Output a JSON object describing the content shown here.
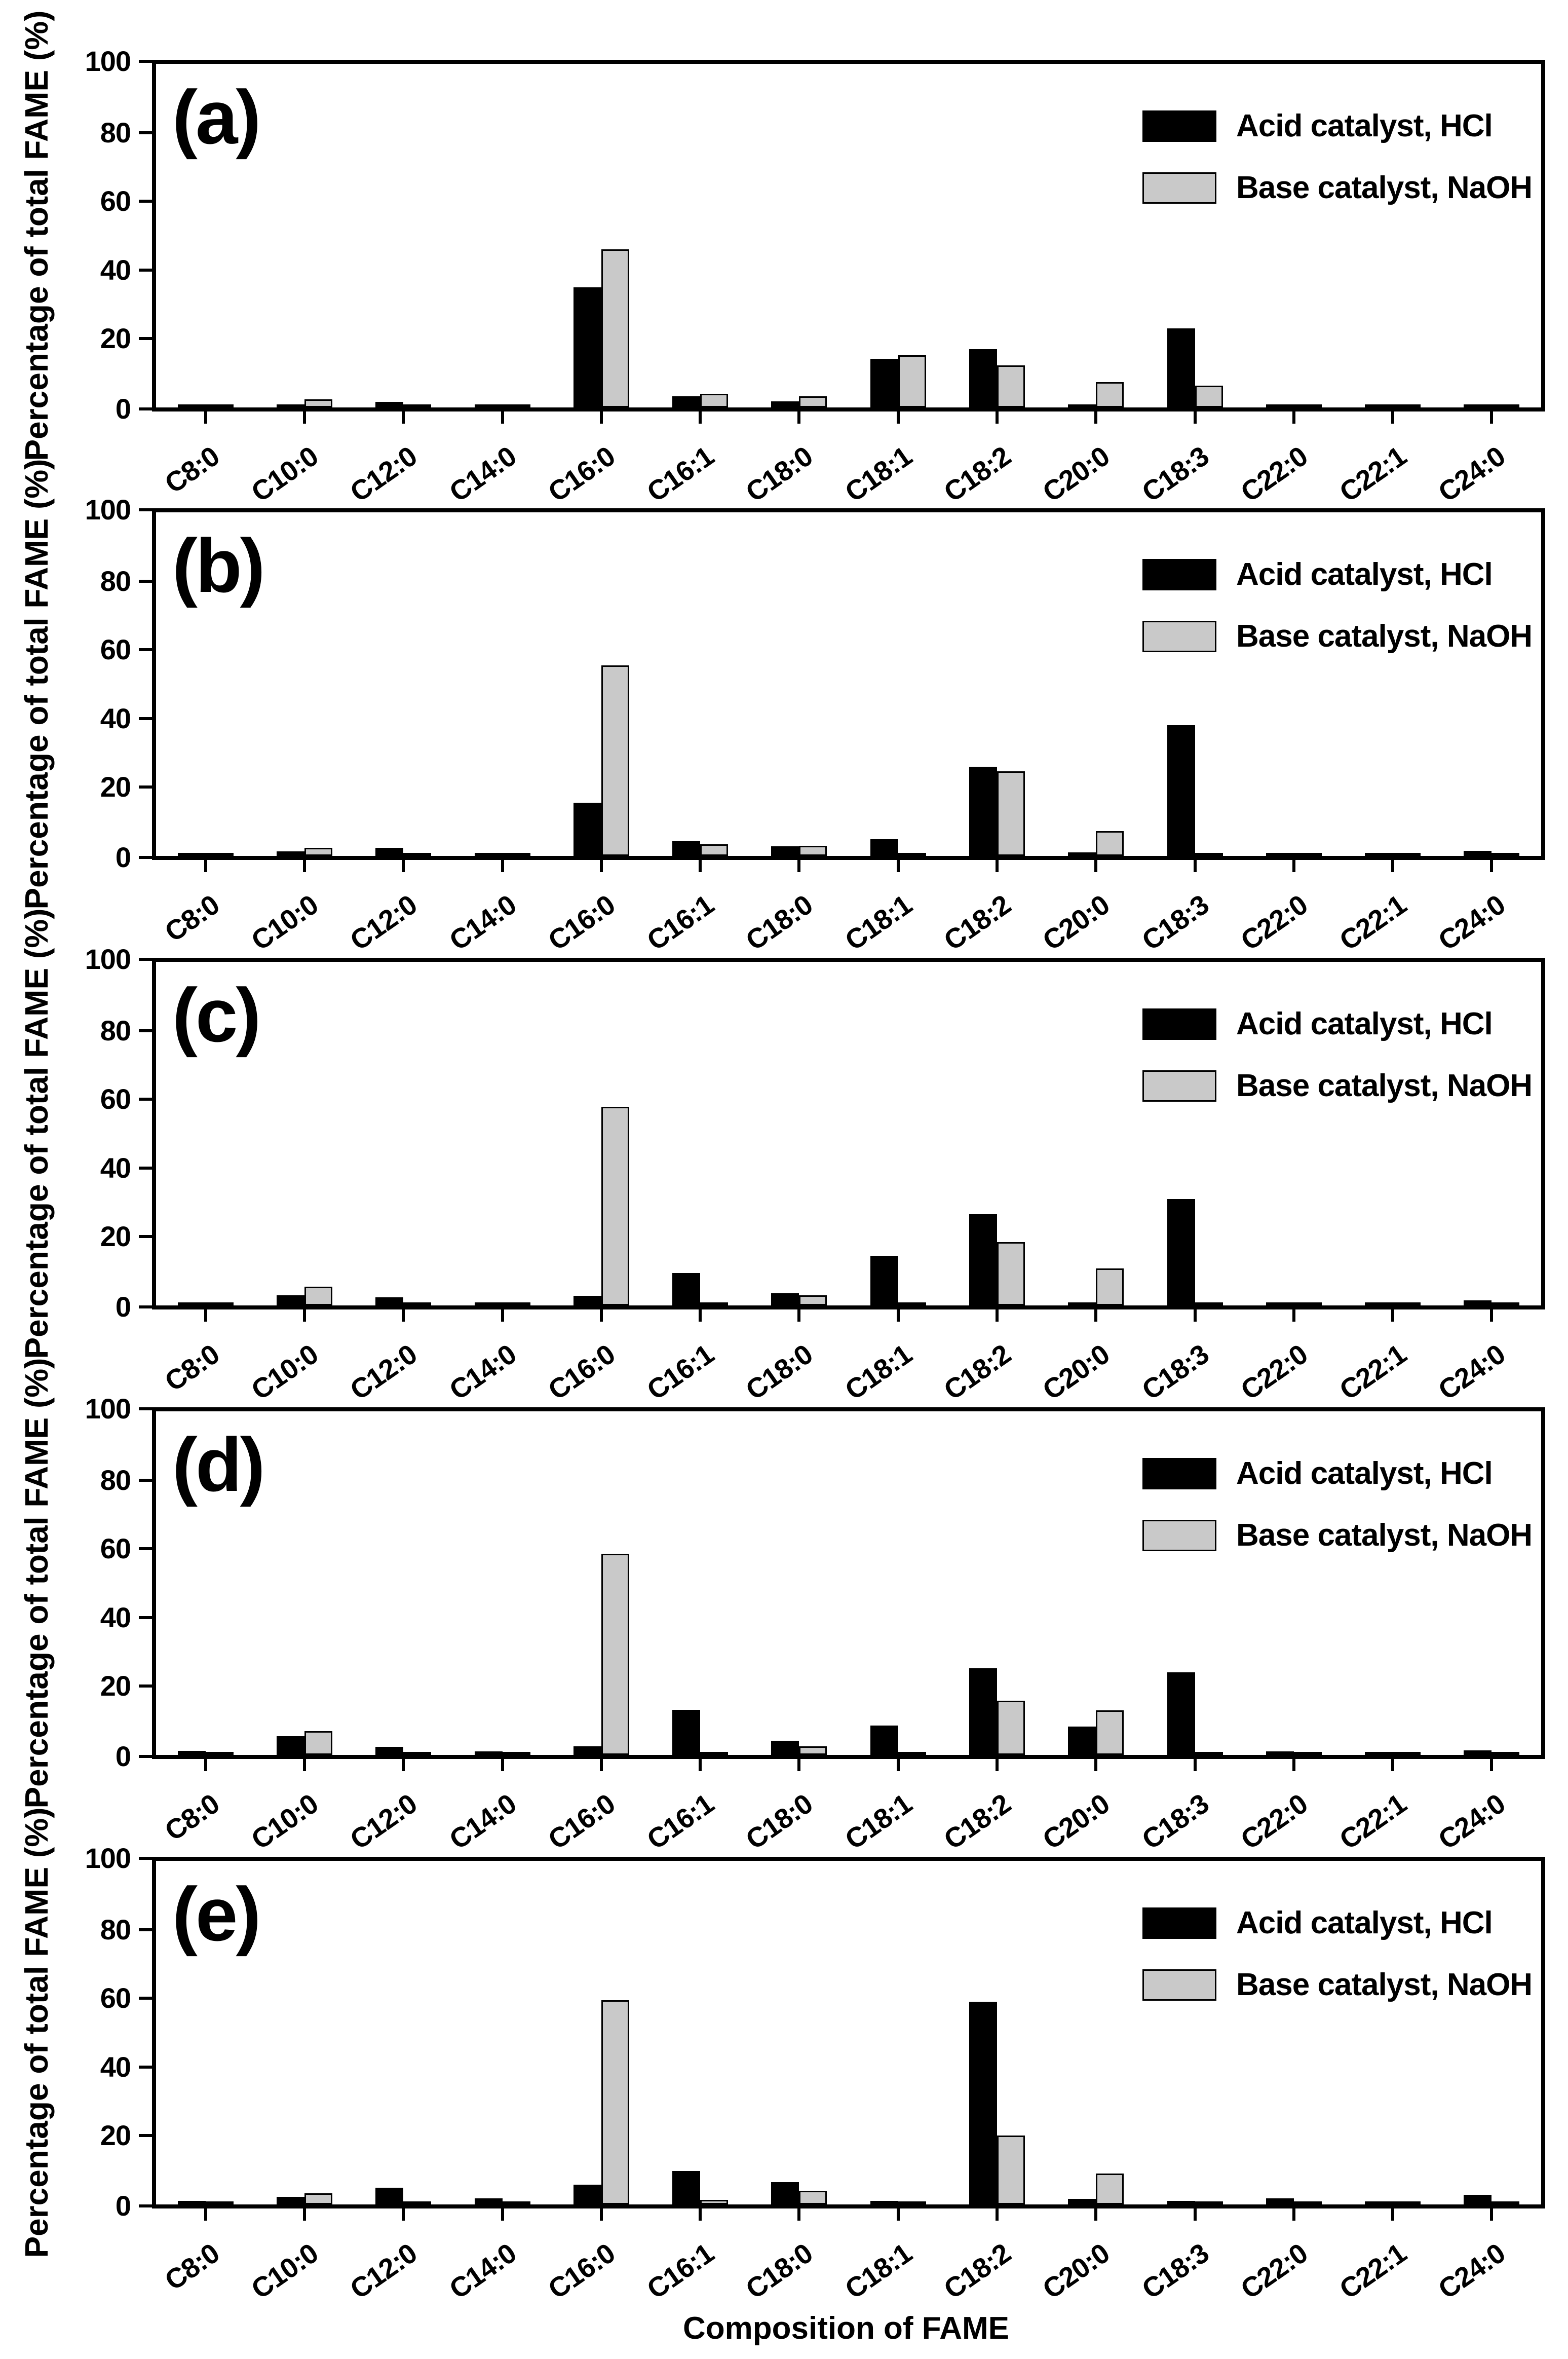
{
  "figure": {
    "y_axis_title": "Percentage of total FAME (%)",
    "x_axis_title": "Composition of FAME",
    "yticks": [
      0,
      20,
      40,
      60,
      80,
      100
    ],
    "colors": {
      "acid_series": "#000000",
      "base_series": "#c9c9c9",
      "axis": "#000000",
      "background": "#ffffff"
    }
  },
  "legend": {
    "acid_label": "Acid catalyst, HCl",
    "base_label": "Base catalyst, NaOH"
  },
  "chart_data": [
    {
      "type": "bar",
      "panel_label": "(a)",
      "ylabel": "Percentage of total FAME (%)",
      "xlabel": "",
      "ylim": [
        0,
        100
      ],
      "yticks": [
        0,
        20,
        40,
        60,
        80,
        100
      ],
      "grid": false,
      "legend_position": "upper right",
      "categories": [
        "C8:0",
        "C10:0",
        "C12:0",
        "C14:0",
        "C16:0",
        "C16:1",
        "C18:0",
        "C18:1",
        "C18:2",
        "C20:0",
        "C18:3",
        "C22:0",
        "C22:1",
        "C24:0"
      ],
      "series": [
        {
          "name": "Acid catalyst, HCl",
          "color": "#000000",
          "values": [
            0.5,
            0.9,
            1.6,
            0.7,
            35.0,
            3.2,
            1.8,
            14.2,
            17.0,
            0.6,
            23.0,
            0.4,
            0.1,
            0.9
          ]
        },
        {
          "name": "Base catalyst, NaOH",
          "color": "#c9c9c9",
          "values": [
            0.2,
            2.4,
            0.1,
            0.4,
            46.0,
            4.0,
            3.3,
            15.2,
            12.2,
            7.4,
            6.4,
            0.2,
            0.1,
            0.1
          ]
        }
      ]
    },
    {
      "type": "bar",
      "panel_label": "(b)",
      "ylabel": "Percentage of total FAME (%)",
      "xlabel": "",
      "ylim": [
        0,
        100
      ],
      "yticks": [
        0,
        20,
        40,
        60,
        80,
        100
      ],
      "grid": false,
      "legend_position": "upper right",
      "categories": [
        "C8:0",
        "C10:0",
        "C12:0",
        "C14:0",
        "C16:0",
        "C16:1",
        "C18:0",
        "C18:1",
        "C18:2",
        "C20:0",
        "C18:3",
        "C22:0",
        "C22:1",
        "C24:0"
      ],
      "series": [
        {
          "name": "Acid catalyst, HCl",
          "color": "#000000",
          "values": [
            0.9,
            1.3,
            2.4,
            0.7,
            15.5,
            4.3,
            2.8,
            4.8,
            26.0,
            1.0,
            38.0,
            0.9,
            0.1,
            1.5
          ]
        },
        {
          "name": "Base catalyst, NaOH",
          "color": "#c9c9c9",
          "values": [
            0.3,
            2.3,
            0.1,
            0.5,
            55.5,
            3.4,
            3.0,
            0.2,
            24.7,
            7.2,
            0.1,
            0.3,
            0.1,
            0.4
          ]
        }
      ]
    },
    {
      "type": "bar",
      "panel_label": "(c)",
      "ylabel": "Percentage of total FAME (%)",
      "xlabel": "",
      "ylim": [
        0,
        100
      ],
      "yticks": [
        0,
        20,
        40,
        60,
        80,
        100
      ],
      "grid": false,
      "legend_position": "upper right",
      "categories": [
        "C8:0",
        "C10:0",
        "C12:0",
        "C14:0",
        "C16:0",
        "C16:1",
        "C18:0",
        "C18:1",
        "C18:2",
        "C20:0",
        "C18:3",
        "C22:0",
        "C22:1",
        "C24:0"
      ],
      "series": [
        {
          "name": "Acid catalyst, HCl",
          "color": "#000000",
          "values": [
            0.9,
            3.0,
            2.3,
            0.8,
            2.8,
            9.5,
            3.6,
            14.5,
            26.5,
            0.8,
            31.0,
            0.9,
            0.5,
            1.5
          ]
        },
        {
          "name": "Base catalyst, NaOH",
          "color": "#c9c9c9",
          "values": [
            0.4,
            5.5,
            0.1,
            0.4,
            57.8,
            0.9,
            3.0,
            0.5,
            18.5,
            10.8,
            0.1,
            0.4,
            0.1,
            0.1
          ]
        }
      ]
    },
    {
      "type": "bar",
      "panel_label": "(d)",
      "ylabel": "Percentage of total FAME (%)",
      "xlabel": "",
      "ylim": [
        0,
        100
      ],
      "yticks": [
        0,
        20,
        40,
        60,
        80,
        100
      ],
      "grid": false,
      "legend_position": "upper right",
      "categories": [
        "C8:0",
        "C10:0",
        "C12:0",
        "C14:0",
        "C16:0",
        "C16:1",
        "C18:0",
        "C18:1",
        "C18:2",
        "C20:0",
        "C18:3",
        "C22:0",
        "C22:1",
        "C24:0"
      ],
      "series": [
        {
          "name": "Acid catalyst, HCl",
          "color": "#000000",
          "values": [
            1.2,
            5.5,
            2.3,
            1.0,
            2.5,
            13.2,
            4.2,
            8.5,
            25.2,
            8.3,
            24.0,
            1.0,
            0.6,
            1.4
          ]
        },
        {
          "name": "Base catalyst, NaOH",
          "color": "#c9c9c9",
          "values": [
            0.5,
            7.0,
            0.1,
            0.5,
            58.5,
            0.6,
            2.5,
            0.7,
            15.8,
            13.0,
            0.1,
            0.1,
            0.1,
            0.1
          ]
        }
      ]
    },
    {
      "type": "bar",
      "panel_label": "(e)",
      "ylabel": "Percentage of total FAME (%)",
      "xlabel": "Composition of FAME",
      "ylim": [
        0,
        100
      ],
      "yticks": [
        0,
        20,
        40,
        60,
        80,
        100
      ],
      "grid": false,
      "legend_position": "upper right",
      "categories": [
        "C8:0",
        "C10:0",
        "C12:0",
        "C14:0",
        "C16:0",
        "C16:1",
        "C18:0",
        "C18:1",
        "C18:2",
        "C20:0",
        "C18:3",
        "C22:0",
        "C22:1",
        "C24:0"
      ],
      "series": [
        {
          "name": "Acid catalyst, HCl",
          "color": "#000000",
          "values": [
            1.1,
            2.2,
            4.8,
            1.7,
            5.8,
            9.8,
            6.5,
            1.1,
            59.0,
            1.6,
            1.0,
            1.8,
            0.8,
            2.8
          ]
        },
        {
          "name": "Base catalyst, NaOH",
          "color": "#c9c9c9",
          "values": [
            0.7,
            3.2,
            0.4,
            0.8,
            59.5,
            1.3,
            4.0,
            0.5,
            20.0,
            9.0,
            0.1,
            0.6,
            0.1,
            0.3
          ]
        }
      ]
    }
  ]
}
